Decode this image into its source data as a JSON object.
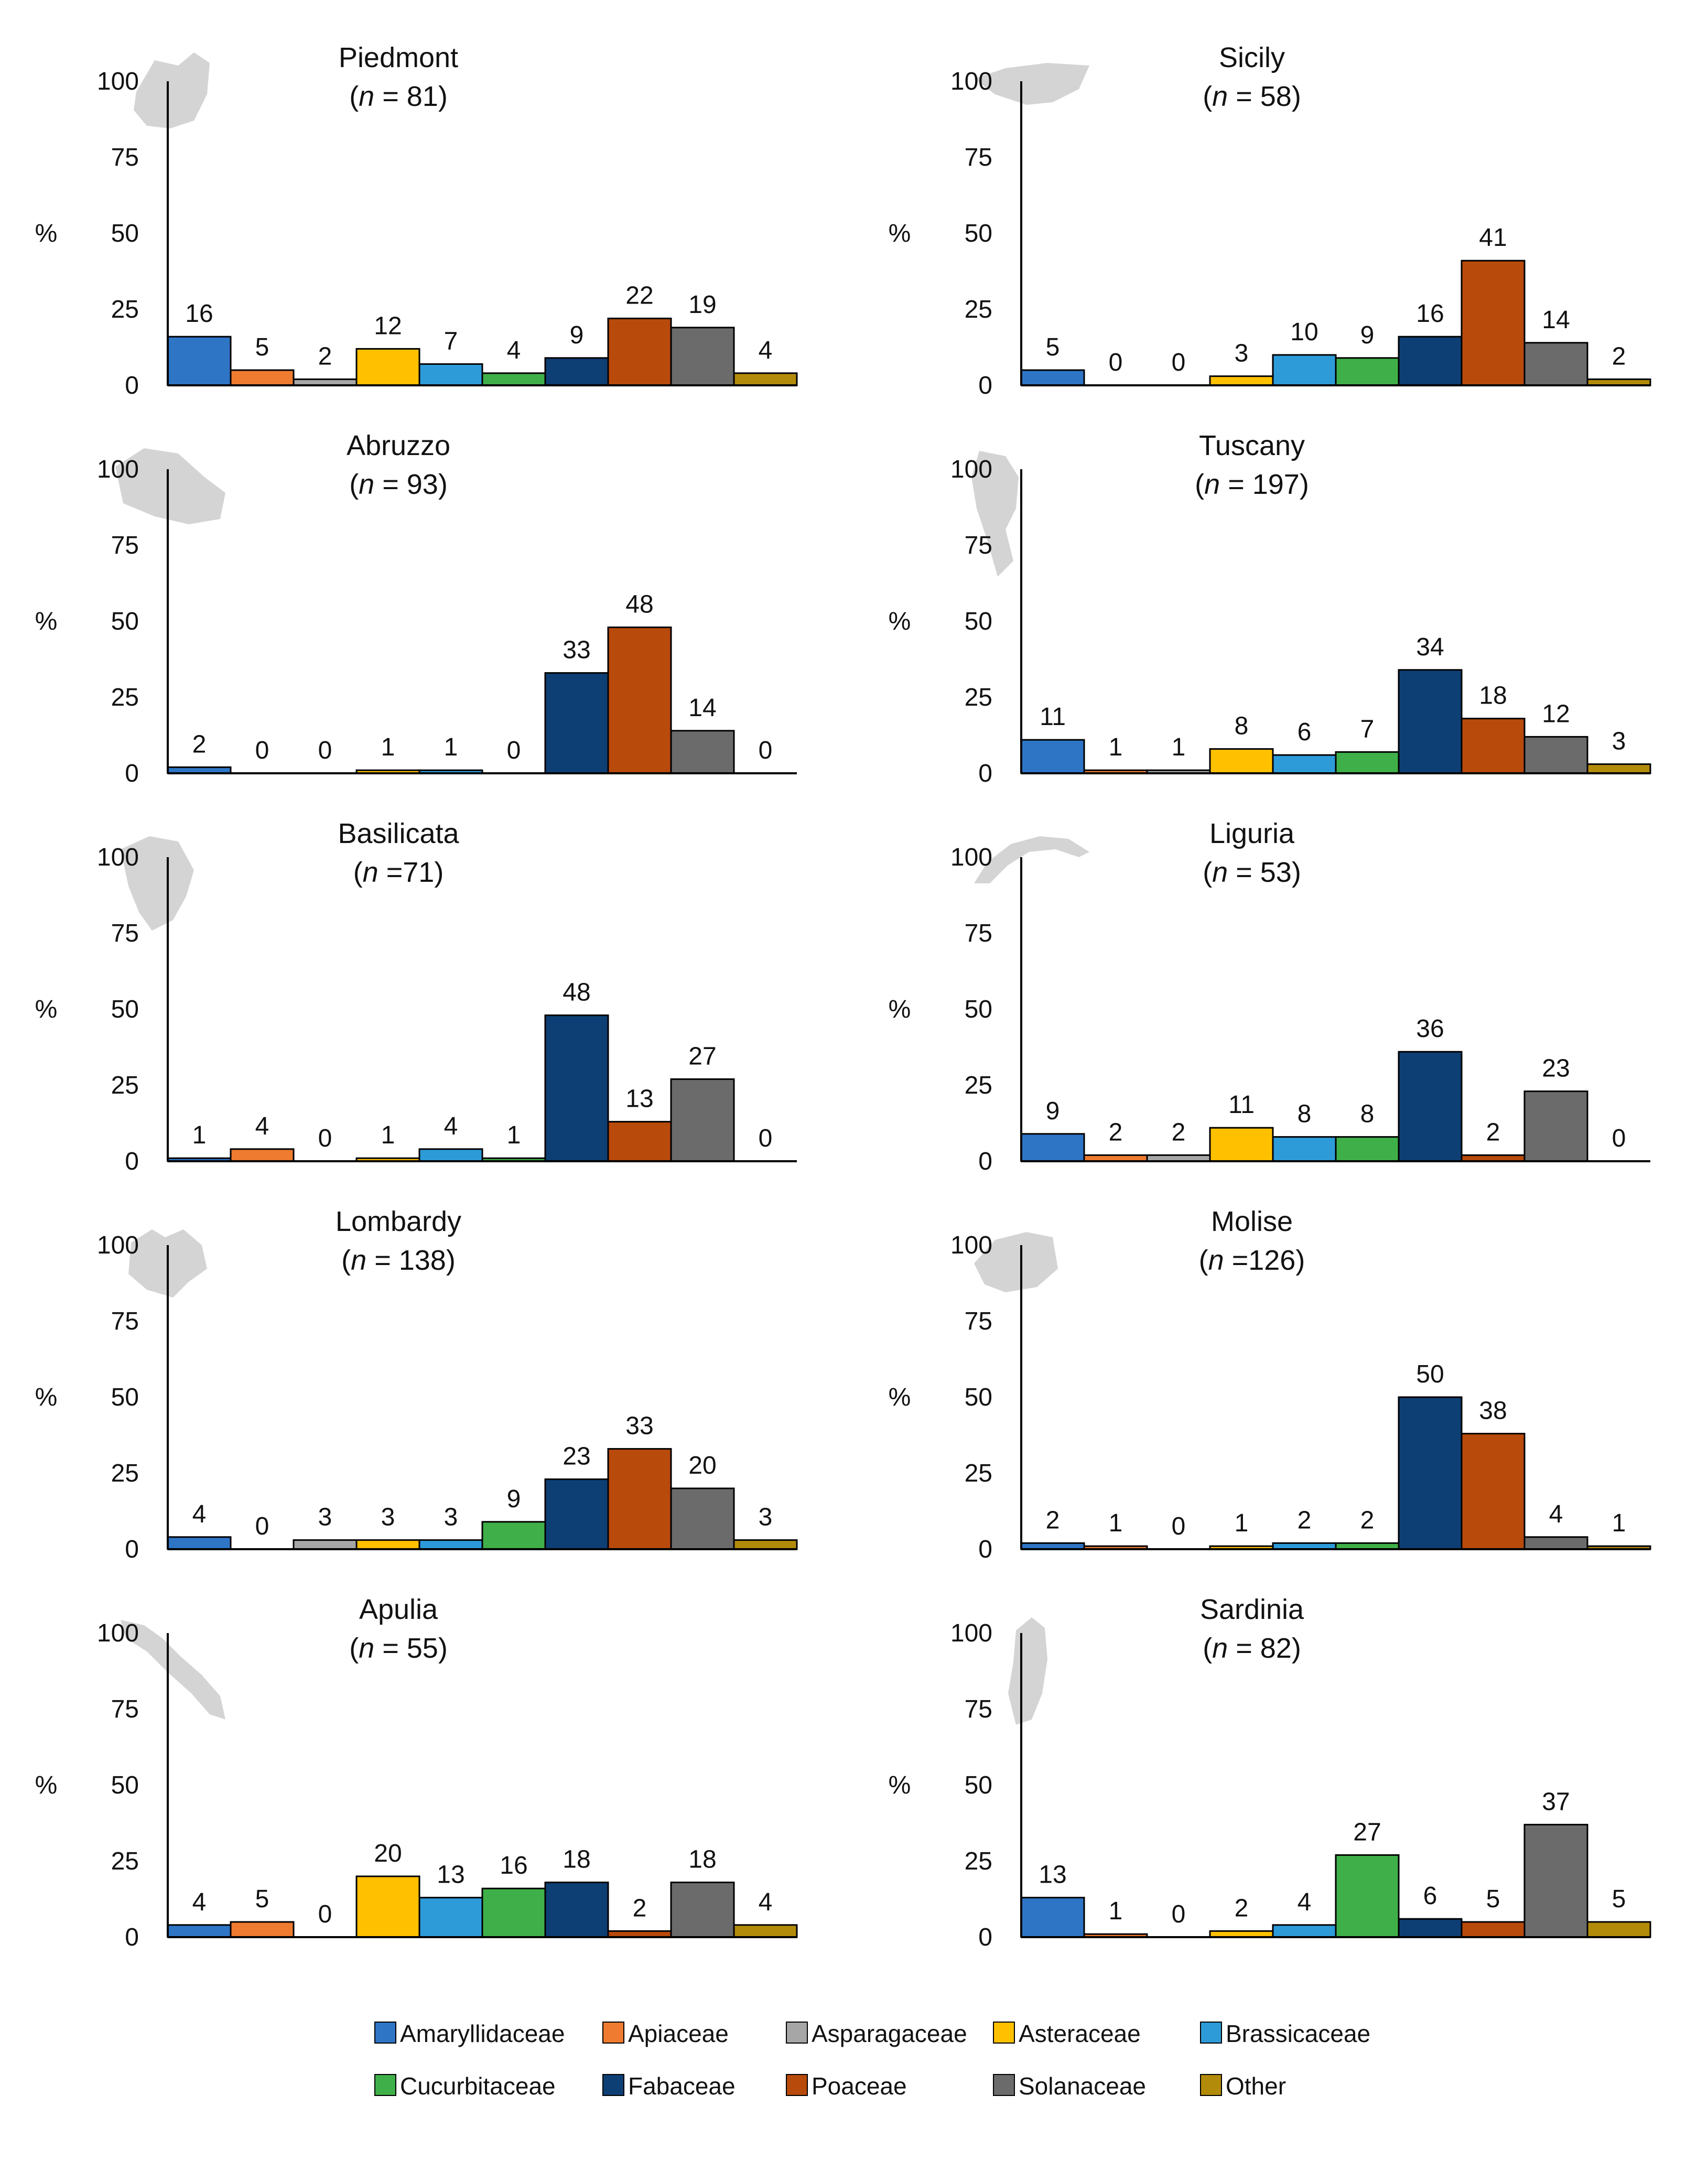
{
  "figure": {
    "y_axis_label": "%",
    "sample_prefix": "n",
    "categories": [
      "Amaryllidaceae",
      "Apiaceae",
      "Asparagaceae",
      "Asteraceae",
      "Brassicaceae",
      "Cucurbitaceae",
      "Fabaceae",
      "Poaceae",
      "Solanaceae",
      "Other"
    ],
    "colors": [
      "#2f75c6",
      "#ee7b30",
      "#a6a6a6",
      "#ffc000",
      "#2e9bd9",
      "#3fb049",
      "#0d3f74",
      "#b84a0c",
      "#6b6b6b",
      "#b38b0b"
    ],
    "legend_rows": [
      [
        0,
        1,
        2,
        3,
        4
      ],
      [
        5,
        6,
        7,
        8,
        9
      ]
    ]
  },
  "chart_data": [
    {
      "type": "bar",
      "region": "Piedmont",
      "n": "81",
      "n_style": "spaced",
      "categories": [
        "Amaryllidaceae",
        "Apiaceae",
        "Asparagaceae",
        "Asteraceae",
        "Brassicaceae",
        "Cucurbitaceae",
        "Fabaceae",
        "Poaceae",
        "Solanaceae",
        "Other"
      ],
      "values": [
        16,
        5,
        2,
        12,
        7,
        4,
        9,
        22,
        19,
        4
      ],
      "ylabel": "%",
      "ylim": [
        0,
        100
      ],
      "yticks": [
        0,
        25,
        50,
        75,
        100
      ]
    },
    {
      "type": "bar",
      "region": "Sicily",
      "n": "58",
      "n_style": "spaced",
      "categories": [
        "Amaryllidaceae",
        "Apiaceae",
        "Asparagaceae",
        "Asteraceae",
        "Brassicaceae",
        "Cucurbitaceae",
        "Fabaceae",
        "Poaceae",
        "Solanaceae",
        "Other"
      ],
      "values": [
        5,
        0,
        0,
        3,
        10,
        9,
        16,
        41,
        14,
        2
      ],
      "ylabel": "%",
      "ylim": [
        0,
        100
      ],
      "yticks": [
        0,
        25,
        50,
        75,
        100
      ]
    },
    {
      "type": "bar",
      "region": "Abruzzo",
      "n": "93",
      "n_style": "spaced",
      "categories": [
        "Amaryllidaceae",
        "Apiaceae",
        "Asparagaceae",
        "Asteraceae",
        "Brassicaceae",
        "Cucurbitaceae",
        "Fabaceae",
        "Poaceae",
        "Solanaceae",
        "Other"
      ],
      "values": [
        2,
        0,
        0,
        1,
        1,
        0,
        33,
        48,
        14,
        0
      ],
      "ylabel": "%",
      "ylim": [
        0,
        100
      ],
      "yticks": [
        0,
        25,
        50,
        75,
        100
      ]
    },
    {
      "type": "bar",
      "region": "Tuscany",
      "n": "197",
      "n_style": "spaced",
      "categories": [
        "Amaryllidaceae",
        "Apiaceae",
        "Asparagaceae",
        "Asteraceae",
        "Brassicaceae",
        "Cucurbitaceae",
        "Fabaceae",
        "Poaceae",
        "Solanaceae",
        "Other"
      ],
      "values": [
        11,
        1,
        1,
        8,
        6,
        7,
        34,
        18,
        12,
        3
      ],
      "ylabel": "%",
      "ylim": [
        0,
        100
      ],
      "yticks": [
        0,
        25,
        50,
        75,
        100
      ]
    },
    {
      "type": "bar",
      "region": "Basilicata",
      "n": "71",
      "n_style": "tight",
      "categories": [
        "Amaryllidaceae",
        "Apiaceae",
        "Asparagaceae",
        "Asteraceae",
        "Brassicaceae",
        "Cucurbitaceae",
        "Fabaceae",
        "Poaceae",
        "Solanaceae",
        "Other"
      ],
      "values": [
        1,
        4,
        0,
        1,
        4,
        1,
        48,
        13,
        27,
        0
      ],
      "ylabel": "%",
      "ylim": [
        0,
        100
      ],
      "yticks": [
        0,
        25,
        50,
        75,
        100
      ]
    },
    {
      "type": "bar",
      "region": "Liguria",
      "n": "53",
      "n_style": "spaced",
      "categories": [
        "Amaryllidaceae",
        "Apiaceae",
        "Asparagaceae",
        "Asteraceae",
        "Brassicaceae",
        "Cucurbitaceae",
        "Fabaceae",
        "Poaceae",
        "Solanaceae",
        "Other"
      ],
      "values": [
        9,
        2,
        2,
        11,
        8,
        8,
        36,
        2,
        23,
        0
      ],
      "ylabel": "%",
      "ylim": [
        0,
        100
      ],
      "yticks": [
        0,
        25,
        50,
        75,
        100
      ]
    },
    {
      "type": "bar",
      "region": "Lombardy",
      "n": "138",
      "n_style": "spaced",
      "categories": [
        "Amaryllidaceae",
        "Apiaceae",
        "Asparagaceae",
        "Asteraceae",
        "Brassicaceae",
        "Cucurbitaceae",
        "Fabaceae",
        "Poaceae",
        "Solanaceae",
        "Other"
      ],
      "values": [
        4,
        0,
        3,
        3,
        3,
        9,
        23,
        33,
        20,
        3
      ],
      "ylabel": "%",
      "ylim": [
        0,
        100
      ],
      "yticks": [
        0,
        25,
        50,
        75,
        100
      ]
    },
    {
      "type": "bar",
      "region": "Molise",
      "n": "126",
      "n_style": "tight",
      "categories": [
        "Amaryllidaceae",
        "Apiaceae",
        "Asparagaceae",
        "Asteraceae",
        "Brassicaceae",
        "Cucurbitaceae",
        "Fabaceae",
        "Poaceae",
        "Solanaceae",
        "Other"
      ],
      "values": [
        2,
        1,
        0,
        1,
        2,
        2,
        50,
        38,
        4,
        1
      ],
      "ylabel": "%",
      "ylim": [
        0,
        100
      ],
      "yticks": [
        0,
        25,
        50,
        75,
        100
      ]
    },
    {
      "type": "bar",
      "region": "Apulia",
      "n": "55",
      "n_style": "spaced",
      "categories": [
        "Amaryllidaceae",
        "Apiaceae",
        "Asparagaceae",
        "Asteraceae",
        "Brassicaceae",
        "Cucurbitaceae",
        "Fabaceae",
        "Poaceae",
        "Solanaceae",
        "Other"
      ],
      "values": [
        4,
        5,
        0,
        20,
        13,
        16,
        18,
        2,
        18,
        4
      ],
      "ylabel": "%",
      "ylim": [
        0,
        100
      ],
      "yticks": [
        0,
        25,
        50,
        75,
        100
      ]
    },
    {
      "type": "bar",
      "region": "Sardinia",
      "n": "82",
      "n_style": "spaced",
      "categories": [
        "Amaryllidaceae",
        "Apiaceae",
        "Asparagaceae",
        "Asteraceae",
        "Brassicaceae",
        "Cucurbitaceae",
        "Fabaceae",
        "Poaceae",
        "Solanaceae",
        "Other"
      ],
      "values": [
        13,
        1,
        0,
        2,
        4,
        27,
        6,
        5,
        37,
        5
      ],
      "ylabel": "%",
      "ylim": [
        0,
        100
      ],
      "yticks": [
        0,
        25,
        50,
        75,
        100
      ]
    }
  ]
}
